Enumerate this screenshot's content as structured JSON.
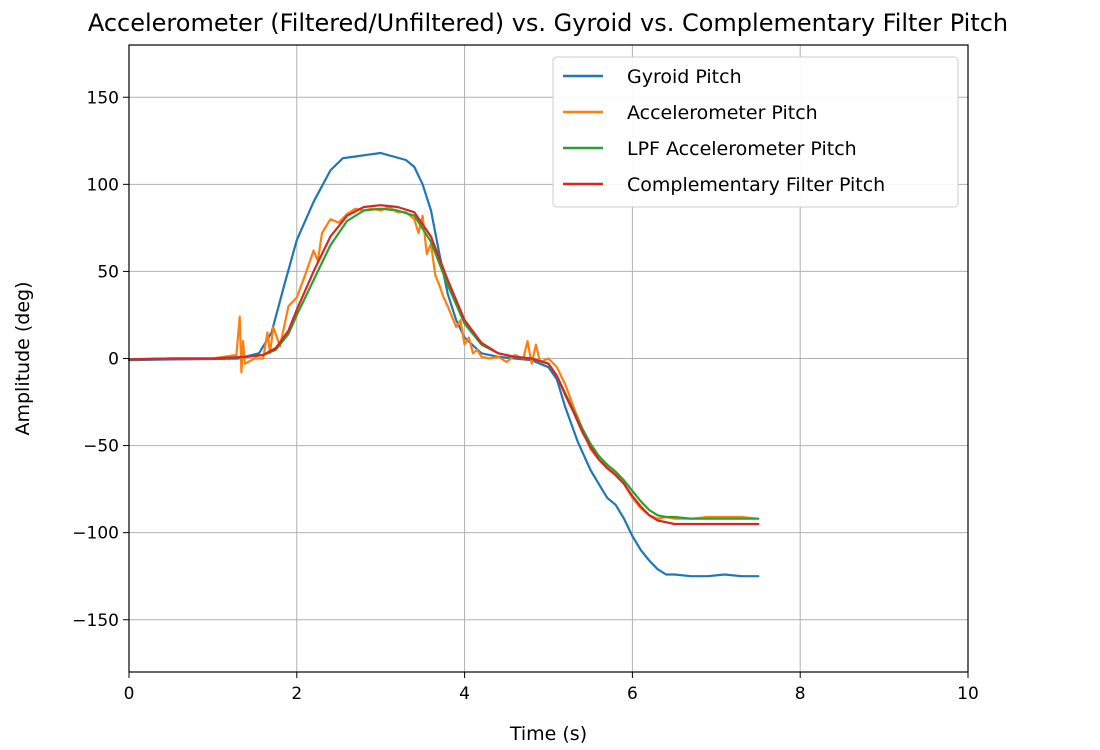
{
  "chart_data": {
    "type": "line",
    "title": "Accelerometer (Filtered/Unfiltered) vs. Gyroid vs. Complementary Filter Pitch",
    "xlabel": "Time (s)",
    "ylabel": "Amplitude (deg)",
    "xlim": [
      0,
      10
    ],
    "ylim": [
      -180,
      180
    ],
    "xticks": [
      0,
      2,
      4,
      6,
      8,
      10
    ],
    "xtick_labels": [
      "0",
      "2",
      "4",
      "6",
      "8",
      "10"
    ],
    "yticks": [
      150,
      100,
      50,
      0,
      -50,
      -100,
      -150
    ],
    "ytick_labels": [
      "150",
      "100",
      "50",
      "0",
      "−50",
      "−100",
      "−150"
    ],
    "grid": true,
    "legend_position": "top-right",
    "series": [
      {
        "name": "Gyroid Pitch",
        "color": "#1f77b4",
        "x": [
          0,
          0.5,
          1.0,
          1.3,
          1.55,
          1.7,
          1.85,
          2.0,
          2.2,
          2.4,
          2.55,
          2.7,
          2.85,
          3.0,
          3.15,
          3.3,
          3.4,
          3.5,
          3.6,
          3.7,
          3.8,
          3.9,
          4.0,
          4.2,
          4.4,
          4.6,
          4.8,
          5.0,
          5.1,
          5.2,
          5.35,
          5.5,
          5.6,
          5.7,
          5.8,
          5.9,
          6.0,
          6.1,
          6.2,
          6.3,
          6.4,
          6.5,
          6.7,
          6.9,
          7.1,
          7.3,
          7.5
        ],
        "y": [
          -1,
          -0.5,
          -0.3,
          0,
          3,
          15,
          42,
          68,
          90,
          108,
          115,
          116,
          117,
          118,
          116,
          114,
          110,
          100,
          85,
          60,
          37,
          22,
          12,
          3,
          1,
          0,
          -1,
          -5,
          -12,
          -28,
          -48,
          -64,
          -72,
          -80,
          -84,
          -92,
          -102,
          -110,
          -116,
          -121,
          -124,
          -124,
          -125,
          -125,
          -124,
          -125,
          -125
        ]
      },
      {
        "name": "Accelerometer Pitch",
        "color": "#ff7f0e",
        "x": [
          0,
          0.5,
          1.0,
          1.28,
          1.32,
          1.34,
          1.36,
          1.38,
          1.5,
          1.6,
          1.65,
          1.68,
          1.72,
          1.8,
          1.9,
          2.0,
          2.1,
          2.2,
          2.25,
          2.3,
          2.4,
          2.5,
          2.6,
          2.7,
          2.8,
          2.9,
          3.0,
          3.1,
          3.2,
          3.3,
          3.4,
          3.45,
          3.5,
          3.55,
          3.6,
          3.65,
          3.7,
          3.75,
          3.8,
          3.85,
          3.9,
          3.95,
          4.0,
          4.05,
          4.1,
          4.15,
          4.2,
          4.3,
          4.4,
          4.5,
          4.6,
          4.7,
          4.75,
          4.8,
          4.85,
          4.9,
          5.0,
          5.1,
          5.2,
          5.3,
          5.4,
          5.5,
          5.6,
          5.7,
          5.8,
          5.9,
          6.0,
          6.1,
          6.2,
          6.3,
          6.4,
          6.5,
          6.7,
          6.9,
          7.1,
          7.3,
          7.5
        ],
        "y": [
          -0.5,
          0,
          0,
          2,
          24,
          -8,
          10,
          -3,
          0,
          0,
          15,
          3,
          18,
          7,
          30,
          35,
          48,
          62,
          56,
          72,
          80,
          78,
          83,
          86,
          85,
          86,
          85,
          87,
          84,
          84,
          80,
          72,
          82,
          60,
          66,
          48,
          42,
          35,
          30,
          24,
          18,
          22,
          8,
          12,
          3,
          5,
          1,
          0,
          1,
          -2,
          2,
          0,
          10,
          -3,
          8,
          -2,
          0,
          -5,
          -15,
          -28,
          -40,
          -52,
          -58,
          -62,
          -66,
          -72,
          -80,
          -86,
          -90,
          -92,
          -91,
          -92,
          -92,
          -91,
          -91,
          -91,
          -92
        ]
      },
      {
        "name": "LPF Accelerometer Pitch",
        "color": "#2ca02c",
        "x": [
          0,
          0.5,
          1.0,
          1.4,
          1.6,
          1.75,
          1.9,
          2.0,
          2.2,
          2.4,
          2.6,
          2.8,
          3.0,
          3.2,
          3.4,
          3.6,
          3.8,
          4.0,
          4.2,
          4.4,
          4.6,
          4.8,
          5.0,
          5.1,
          5.2,
          5.3,
          5.4,
          5.5,
          5.6,
          5.7,
          5.8,
          5.9,
          6.0,
          6.1,
          6.2,
          6.3,
          6.4,
          6.5,
          6.7,
          6.9,
          7.1,
          7.3,
          7.5
        ],
        "y": [
          -0.5,
          0,
          0,
          1,
          2,
          5,
          14,
          25,
          45,
          65,
          79,
          85,
          86,
          85,
          82,
          67,
          42,
          20,
          8,
          3,
          1,
          0,
          -3,
          -10,
          -20,
          -30,
          -40,
          -49,
          -56,
          -61,
          -65,
          -70,
          -76,
          -82,
          -87,
          -90,
          -91,
          -91,
          -92,
          -92,
          -92,
          -92,
          -92
        ]
      },
      {
        "name": "Complementary Filter Pitch",
        "color": "#d62728",
        "x": [
          0,
          0.5,
          1.0,
          1.4,
          1.6,
          1.75,
          1.9,
          2.0,
          2.2,
          2.4,
          2.6,
          2.8,
          3.0,
          3.2,
          3.4,
          3.6,
          3.8,
          4.0,
          4.2,
          4.4,
          4.6,
          4.8,
          5.0,
          5.1,
          5.2,
          5.3,
          5.4,
          5.5,
          5.6,
          5.7,
          5.8,
          5.9,
          6.0,
          6.1,
          6.2,
          6.3,
          6.4,
          6.5,
          6.7,
          6.9,
          7.1,
          7.3,
          7.5
        ],
        "y": [
          -0.5,
          0,
          0,
          1,
          2,
          6,
          16,
          28,
          50,
          70,
          82,
          87,
          88,
          87,
          84,
          70,
          45,
          22,
          9,
          3,
          1,
          0,
          -3,
          -10,
          -21,
          -31,
          -42,
          -51,
          -58,
          -63,
          -67,
          -72,
          -79,
          -85,
          -90,
          -93,
          -94,
          -95,
          -95,
          -95,
          -95,
          -95,
          -95
        ]
      }
    ]
  }
}
